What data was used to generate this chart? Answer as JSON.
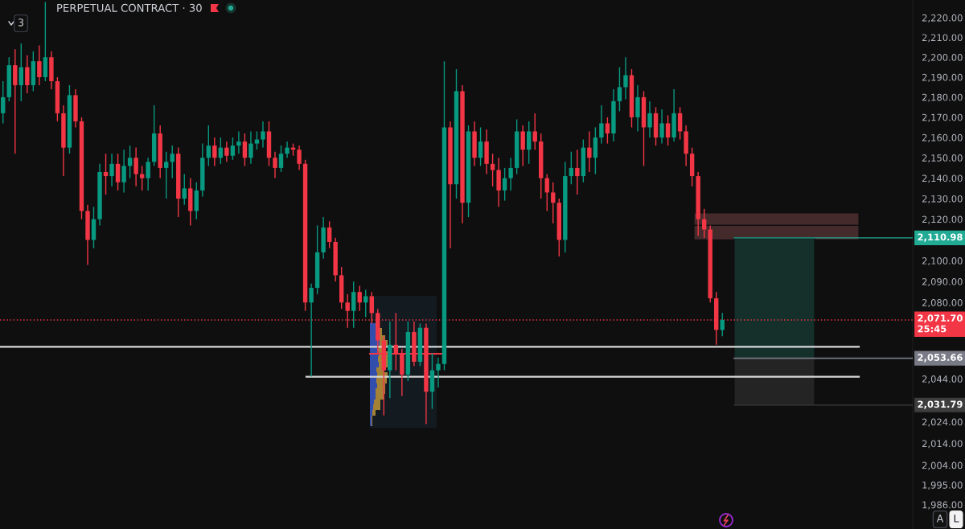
{
  "chart_data": {
    "type": "candlestick",
    "title": "PERPETUAL CONTRACT · 30",
    "categories": [
      null,
      null,
      null,
      null,
      null,
      null,
      null,
      null,
      null,
      null,
      null,
      null,
      null,
      null,
      null,
      null,
      null,
      null,
      null,
      null,
      null,
      null,
      null,
      null,
      null,
      null,
      null,
      null,
      null,
      null,
      null,
      null,
      null,
      null,
      null,
      null,
      null,
      null,
      null,
      null,
      null,
      null,
      null,
      null,
      null,
      null,
      null,
      null,
      null,
      null,
      null,
      null,
      null,
      null,
      null,
      null,
      null,
      null,
      null,
      null,
      null,
      null,
      null,
      null,
      null,
      null,
      null,
      null,
      null,
      null,
      null,
      null,
      null,
      null,
      null,
      null,
      null,
      null,
      null,
      null,
      null,
      null,
      null,
      null,
      null,
      null,
      null,
      null,
      null,
      null,
      null,
      null,
      null,
      null,
      null,
      null,
      null,
      null,
      null,
      null,
      null,
      null,
      null,
      null,
      null,
      null,
      null,
      null,
      null,
      null,
      null,
      null,
      null,
      null,
      null,
      null,
      null,
      null,
      null,
      null,
      null,
      null,
      null,
      null,
      null,
      null,
      null,
      null,
      null,
      null,
      null,
      null,
      null,
      null,
      null,
      null,
      null,
      null,
      null,
      null,
      null,
      null,
      null,
      null,
      null,
      null,
      null,
      null,
      null,
      null,
      null
    ],
    "ohlc": [
      [
        2172,
        2188,
        2167,
        2180
      ],
      [
        2180,
        2200,
        2178,
        2196
      ],
      [
        2196,
        2204,
        2152,
        2186
      ],
      [
        2186,
        2207,
        2178,
        2195
      ],
      [
        2195,
        2201,
        2182,
        2186
      ],
      [
        2186,
        2203,
        2183,
        2198
      ],
      [
        2198,
        2206,
        2186,
        2190
      ],
      [
        2190,
        2228,
        2188,
        2200
      ],
      [
        2200,
        2203,
        2184,
        2188
      ],
      [
        2188,
        2190,
        2168,
        2172
      ],
      [
        2172,
        2176,
        2141,
        2155
      ],
      [
        2155,
        2186,
        2152,
        2181
      ],
      [
        2181,
        2184,
        2165,
        2168
      ],
      [
        2168,
        2170,
        2120,
        2124
      ],
      [
        2124,
        2127,
        2098,
        2110
      ],
      [
        2110,
        2126,
        2106,
        2120
      ],
      [
        2120,
        2147,
        2117,
        2143
      ],
      [
        2143,
        2152,
        2132,
        2141
      ],
      [
        2141,
        2152,
        2136,
        2147
      ],
      [
        2147,
        2152,
        2134,
        2138
      ],
      [
        2138,
        2154,
        2133,
        2146
      ],
      [
        2146,
        2156,
        2140,
        2150
      ],
      [
        2150,
        2155,
        2136,
        2142
      ],
      [
        2142,
        2146,
        2134,
        2140
      ],
      [
        2140,
        2150,
        2134,
        2148
      ],
      [
        2148,
        2176,
        2146,
        2162
      ],
      [
        2162,
        2166,
        2140,
        2145
      ],
      [
        2145,
        2153,
        2130,
        2148
      ],
      [
        2148,
        2156,
        2140,
        2152
      ],
      [
        2152,
        2155,
        2121,
        2130
      ],
      [
        2130,
        2142,
        2127,
        2135
      ],
      [
        2135,
        2140,
        2117,
        2124
      ],
      [
        2124,
        2138,
        2120,
        2134
      ],
      [
        2134,
        2157,
        2131,
        2150
      ],
      [
        2150,
        2166,
        2146,
        2156
      ],
      [
        2156,
        2160,
        2146,
        2150
      ],
      [
        2150,
        2160,
        2147,
        2155
      ],
      [
        2155,
        2158,
        2148,
        2151
      ],
      [
        2151,
        2160,
        2149,
        2156
      ],
      [
        2156,
        2163,
        2152,
        2158
      ],
      [
        2158,
        2162,
        2146,
        2150
      ],
      [
        2150,
        2163,
        2147,
        2157
      ],
      [
        2157,
        2163,
        2154,
        2159
      ],
      [
        2159,
        2168,
        2155,
        2163
      ],
      [
        2163,
        2168,
        2146,
        2150
      ],
      [
        2150,
        2153,
        2140,
        2145
      ],
      [
        2145,
        2156,
        2143,
        2152
      ],
      [
        2152,
        2158,
        2150,
        2155
      ],
      [
        2155,
        2157,
        2151,
        2154
      ],
      [
        2154,
        2156,
        2144,
        2147
      ],
      [
        2147,
        2149,
        2076,
        2080
      ],
      [
        2080,
        2089,
        2045,
        2087
      ],
      [
        2087,
        2117,
        2084,
        2104
      ],
      [
        2104,
        2121,
        2101,
        2116
      ],
      [
        2116,
        2119,
        2106,
        2109
      ],
      [
        2109,
        2111,
        2090,
        2093
      ],
      [
        2093,
        2097,
        2077,
        2080
      ],
      [
        2080,
        2084,
        2068,
        2076
      ],
      [
        2076,
        2090,
        2068,
        2085
      ],
      [
        2085,
        2088,
        2076,
        2080
      ],
      [
        2080,
        2086,
        2073,
        2083
      ],
      [
        2083,
        2085,
        2070,
        2075
      ],
      [
        2075,
        2077,
        2056,
        2062
      ],
      [
        2062,
        2064,
        2027,
        2048
      ],
      [
        2048,
        2071,
        2035,
        2060
      ],
      [
        2060,
        2075,
        2048,
        2056
      ],
      [
        2056,
        2058,
        2036,
        2046
      ],
      [
        2046,
        2071,
        2043,
        2066
      ],
      [
        2066,
        2071,
        2050,
        2052
      ],
      [
        2052,
        2070,
        2050,
        2068
      ],
      [
        2068,
        2070,
        2023,
        2038
      ],
      [
        2038,
        2056,
        2030,
        2048
      ],
      [
        2048,
        2054,
        2040,
        2051
      ],
      [
        2051,
        2198,
        2048,
        2165
      ],
      [
        2165,
        2168,
        2106,
        2137
      ],
      [
        2137,
        2194,
        2130,
        2183
      ],
      [
        2183,
        2186,
        2118,
        2128
      ],
      [
        2128,
        2166,
        2121,
        2163
      ],
      [
        2163,
        2168,
        2146,
        2150
      ],
      [
        2150,
        2165,
        2146,
        2158
      ],
      [
        2158,
        2164,
        2142,
        2147
      ],
      [
        2147,
        2152,
        2136,
        2144
      ],
      [
        2144,
        2150,
        2126,
        2134
      ],
      [
        2134,
        2145,
        2129,
        2140
      ],
      [
        2140,
        2150,
        2134,
        2145
      ],
      [
        2145,
        2169,
        2142,
        2163
      ],
      [
        2163,
        2166,
        2146,
        2154
      ],
      [
        2154,
        2168,
        2147,
        2163
      ],
      [
        2163,
        2172,
        2154,
        2158
      ],
      [
        2158,
        2162,
        2130,
        2140
      ],
      [
        2140,
        2142,
        2124,
        2133
      ],
      [
        2133,
        2138,
        2118,
        2128
      ],
      [
        2128,
        2130,
        2102,
        2110
      ],
      [
        2110,
        2148,
        2104,
        2141
      ],
      [
        2141,
        2153,
        2137,
        2145
      ],
      [
        2145,
        2154,
        2132,
        2141
      ],
      [
        2141,
        2159,
        2138,
        2155
      ],
      [
        2155,
        2163,
        2143,
        2150
      ],
      [
        2150,
        2165,
        2142,
        2160
      ],
      [
        2160,
        2176,
        2157,
        2167
      ],
      [
        2167,
        2170,
        2157,
        2162
      ],
      [
        2162,
        2184,
        2158,
        2178
      ],
      [
        2178,
        2195,
        2173,
        2185
      ],
      [
        2185,
        2200,
        2179,
        2191
      ],
      [
        2191,
        2194,
        2165,
        2170
      ],
      [
        2170,
        2186,
        2163,
        2180
      ],
      [
        2180,
        2183,
        2146,
        2165
      ],
      [
        2165,
        2178,
        2160,
        2172
      ],
      [
        2172,
        2175,
        2156,
        2160
      ],
      [
        2160,
        2174,
        2157,
        2167
      ],
      [
        2167,
        2171,
        2156,
        2160
      ],
      [
        2160,
        2184,
        2158,
        2172
      ],
      [
        2172,
        2175,
        2159,
        2163
      ],
      [
        2163,
        2166,
        2146,
        2152
      ],
      [
        2152,
        2155,
        2136,
        2141
      ],
      [
        2141,
        2143,
        2112,
        2120
      ],
      [
        2120,
        2125,
        2111,
        2115
      ],
      [
        2115,
        2117,
        2080,
        2082
      ],
      [
        2082,
        2085,
        2060,
        2067
      ],
      [
        2067,
        2075,
        2064,
        2071.7
      ],
      null,
      null,
      null,
      null,
      null,
      null,
      null,
      null,
      null,
      null,
      null,
      null,
      null,
      null,
      null,
      null,
      null,
      null,
      null,
      null,
      null,
      null,
      null,
      null,
      null,
      null,
      null,
      null,
      null,
      null,
      null
    ],
    "colors": [
      "#089981",
      "#089981",
      "#f23645",
      "#089981",
      "#f23645",
      "#089981",
      "#f23645",
      "#089981",
      "#f23645",
      "#f23645",
      "#f23645",
      "#089981",
      "#f23645",
      "#f23645",
      "#f23645",
      "#089981",
      "#089981",
      "#f23645",
      "#089981",
      "#f23645",
      "#089981",
      "#089981",
      "#f23645",
      "#f23645",
      "#089981",
      "#089981",
      "#f23645",
      "#089981",
      "#089981",
      "#f23645",
      "#089981",
      "#f23645",
      "#089981",
      "#089981",
      "#089981",
      "#f23645",
      "#089981",
      "#f23645",
      "#089981",
      "#089981",
      "#f23645",
      "#089981",
      "#089981",
      "#089981",
      "#f23645",
      "#f23645",
      "#089981",
      "#089981",
      "#f23645",
      "#f23645",
      "#f23645",
      "#089981",
      "#089981",
      "#089981",
      "#f23645",
      "#f23645",
      "#f23645",
      "#f23645",
      "#089981",
      "#f23645",
      "#089981",
      "#f23645",
      "#f23645",
      "#f23645",
      "#089981",
      "#f23645",
      "#f23645",
      "#089981",
      "#f23645",
      "#089981",
      "#f23645",
      "#089981",
      "#089981",
      "#089981",
      "#f23645",
      "#089981",
      "#f23645",
      "#089981",
      "#f23645",
      "#089981",
      "#f23645",
      "#f23645",
      "#f23645",
      "#089981",
      "#089981",
      "#089981",
      "#f23645",
      "#089981",
      "#f23645",
      "#f23645",
      "#f23645",
      "#f23645",
      "#f23645",
      "#089981",
      "#089981",
      "#f23645",
      "#089981",
      "#f23645",
      "#089981",
      "#089981",
      "#f23645",
      "#089981",
      "#089981",
      "#089981",
      "#f23645",
      "#089981",
      "#f23645",
      "#089981",
      "#f23645",
      "#089981",
      "#f23645",
      "#089981",
      "#f23645",
      "#f23645",
      "#f23645",
      "#f23645",
      "#f23645",
      "#f23645",
      "#f23645",
      "#089981",
      null,
      null,
      null,
      null,
      null,
      null,
      null,
      null,
      null,
      null,
      null,
      null,
      null,
      null,
      null,
      null,
      null,
      null,
      null,
      null,
      null,
      null,
      null,
      null,
      null,
      null,
      null,
      null,
      null,
      null,
      null
    ],
    "log": true,
    "ylim": [
      1975,
      2229
    ],
    "yticks": [
      {
        "value": 2220,
        "label": "2,220.00"
      },
      {
        "value": 2210,
        "label": "2,210.00"
      },
      {
        "value": 2200,
        "label": "2,200.00"
      },
      {
        "value": 2190,
        "label": "2,190.00"
      },
      {
        "value": 2180,
        "label": "2,180.00"
      },
      {
        "value": 2170,
        "label": "2,170.00"
      },
      {
        "value": 2160,
        "label": "2,160.00"
      },
      {
        "value": 2150,
        "label": "2,150.00"
      },
      {
        "value": 2140,
        "label": "2,140.00"
      },
      {
        "value": 2130,
        "label": "2,130.00"
      },
      {
        "value": 2120,
        "label": "2,120.00"
      },
      {
        "value": 2100,
        "label": "2,100.00"
      },
      {
        "value": 2090,
        "label": "2,090.00"
      },
      {
        "value": 2080,
        "label": "2,080.00"
      },
      {
        "value": 2044,
        "label": "2,044.00"
      },
      {
        "value": 2024,
        "label": "2,024.00"
      },
      {
        "value": 2014,
        "label": "2,014.00"
      },
      {
        "value": 2004,
        "label": "2,004.00"
      },
      {
        "value": 1995,
        "label": "1,995.00"
      },
      {
        "value": 1986,
        "label": "1,986.00"
      }
    ],
    "tick_labels": "y",
    "ref_lines": [
      {
        "axis": "y",
        "value": 2071.7,
        "label": "2,071.70\n25:45",
        "color": "#f23645",
        "line_style": "dotted"
      },
      {
        "axis": "y",
        "value": 2059,
        "color": "#d9d9d9"
      },
      {
        "axis": "y",
        "value": 2045,
        "color": "#d9d9d9"
      },
      {
        "axis": "y",
        "value": 2110.98,
        "label": "2,110.98",
        "color": "#22ab94"
      },
      {
        "axis": "y",
        "value": 2053.66,
        "label": "2,053.66",
        "color": "#787b86"
      },
      {
        "axis": "y",
        "value": 2031.79,
        "label": "2,031.79",
        "color": "#3d3d3d"
      }
    ],
    "bands": [
      {
        "axis": "y",
        "from": 2117,
        "to": 2123,
        "color": "#452a2c"
      },
      {
        "axis": "y",
        "from": 2110,
        "to": 2117,
        "color": "#452a2c"
      },
      {
        "axis": "y",
        "from": 2053.66,
        "to": 2110.98,
        "color": "#15302b"
      },
      {
        "axis": "y",
        "from": 2031.79,
        "to": 2053.66,
        "color": "#242424"
      }
    ],
    "annotations": [
      "3",
      "A",
      "L"
    ]
  }
}
